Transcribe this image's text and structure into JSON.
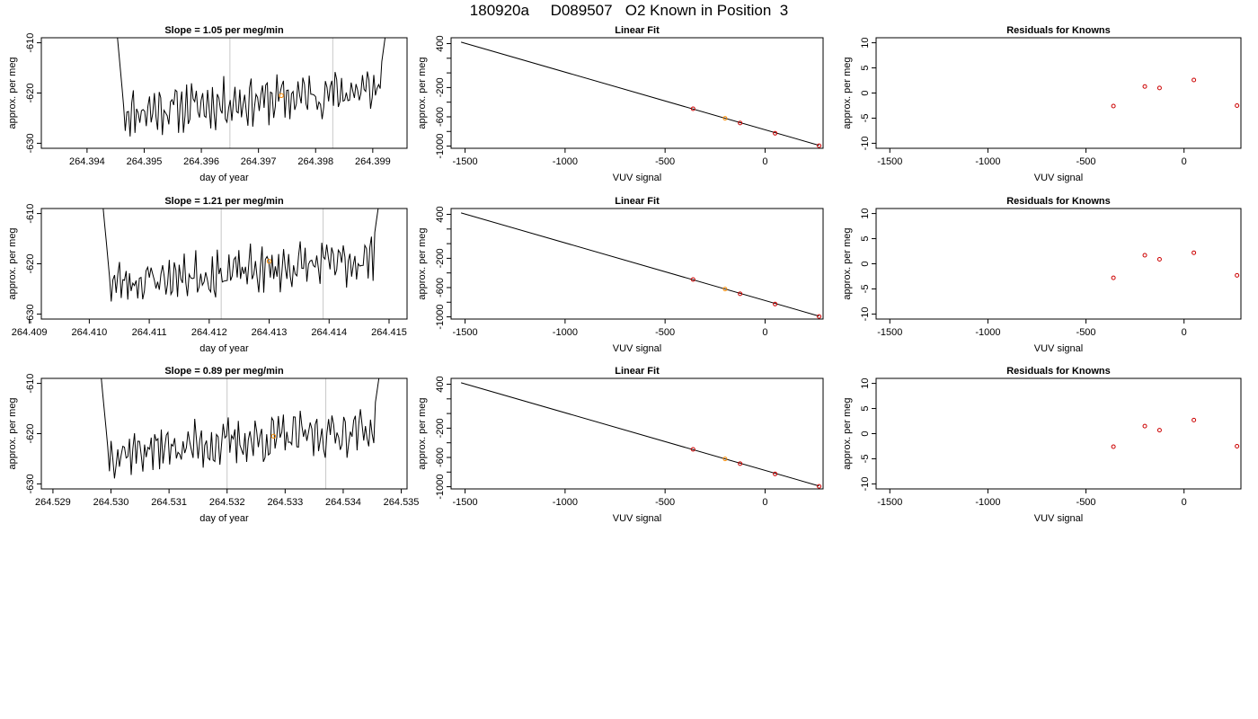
{
  "page": {
    "title": "180920a     D089507   O2 Known in Position  3"
  },
  "colors": {
    "trace": "#000000",
    "sample_marker": "#ff8c00",
    "known_point": "#cc0000",
    "vline": "#c8c8c8"
  },
  "chart_data": [
    {
      "type": "line",
      "title": "Slope =  1.05  per meg/min",
      "xlabel": "day of year",
      "ylabel": "approx. per meg",
      "xlim": [
        264.3932,
        264.3996
      ],
      "ylim": [
        -631,
        -609
      ],
      "x_ticks": [
        "264.394",
        "264.395",
        "264.396",
        "264.397",
        "264.398",
        "264.399"
      ],
      "y_ticks": [
        "-630",
        "-620",
        "-610"
      ],
      "trace_range": [
        264.3945,
        264.3993
      ],
      "vlines": [
        264.3965,
        264.3983
      ],
      "marker": {
        "x": 264.3974,
        "y": -620.5
      },
      "seed": 11
    },
    {
      "type": "scatter",
      "title": "Linear Fit",
      "xlabel": "VUV signal",
      "ylabel": "approx. per meg",
      "xlim": [
        -1570,
        290
      ],
      "ylim": [
        -1030,
        480
      ],
      "x_ticks": [
        "-1500",
        "-1000",
        "-500",
        "0"
      ],
      "y_ticks": [
        "-1000",
        "-800",
        "-600",
        "-400",
        "-200",
        "0",
        "200",
        "400"
      ],
      "y_tick_labels": [
        "-1000",
        "",
        "-600",
        "",
        "-200",
        "",
        "",
        "400"
      ],
      "line": [
        [
          -1520,
          420
        ],
        [
          270,
          -990
        ]
      ],
      "points": [
        [
          -360,
          -490
        ],
        [
          -200,
          -620
        ],
        [
          -125,
          -685
        ],
        [
          50,
          -825
        ],
        [
          270,
          -995
        ]
      ],
      "highlight_index": 1
    },
    {
      "type": "scatter",
      "title": "Residuals for Knowns",
      "xlabel": "VUV signal",
      "ylabel": "approx. per meg",
      "xlim": [
        -1570,
        290
      ],
      "ylim": [
        -11,
        11
      ],
      "x_ticks": [
        "-1500",
        "-1000",
        "-500",
        "0"
      ],
      "y_ticks": [
        "-10",
        "-5",
        "0",
        "5",
        "10"
      ],
      "points": [
        [
          -360,
          -2.6
        ],
        [
          -200,
          1.3
        ],
        [
          -125,
          1.0
        ],
        [
          50,
          2.6
        ],
        [
          270,
          -2.5
        ]
      ]
    },
    {
      "type": "line",
      "title": "Slope =  1.21  per meg/min",
      "xlabel": "day of year",
      "ylabel": "approx. per meg",
      "xlim": [
        264.4092,
        264.4153
      ],
      "ylim": [
        -631,
        -609
      ],
      "x_ticks": [
        "264.409",
        "264.410",
        "264.411",
        "264.412",
        "264.413",
        "264.414",
        "264.415"
      ],
      "y_ticks": [
        "-630",
        "-620",
        "-610"
      ],
      "trace_range": [
        264.4102,
        264.4149
      ],
      "vlines": [
        264.4122,
        264.4139
      ],
      "marker": {
        "x": 264.413,
        "y": -619.5
      },
      "seed": 23
    },
    {
      "type": "scatter",
      "title": "Linear Fit",
      "xlabel": "VUV signal",
      "ylabel": "approx. per meg",
      "xlim": [
        -1570,
        290
      ],
      "ylim": [
        -1030,
        480
      ],
      "x_ticks": [
        "-1500",
        "-1000",
        "-500",
        "0"
      ],
      "y_ticks": [
        "-1000",
        "-800",
        "-600",
        "-400",
        "-200",
        "0",
        "200",
        "400"
      ],
      "y_tick_labels": [
        "-1000",
        "",
        "-600",
        "",
        "-200",
        "",
        "",
        "400"
      ],
      "line": [
        [
          -1520,
          420
        ],
        [
          270,
          -990
        ]
      ],
      "points": [
        [
          -360,
          -490
        ],
        [
          -200,
          -620
        ],
        [
          -125,
          -685
        ],
        [
          50,
          -825
        ],
        [
          270,
          -995
        ]
      ],
      "highlight_index": 1
    },
    {
      "type": "scatter",
      "title": "Residuals for Knowns",
      "xlabel": "VUV signal",
      "ylabel": "approx. per meg",
      "xlim": [
        -1570,
        290
      ],
      "ylim": [
        -11,
        11
      ],
      "x_ticks": [
        "-1500",
        "-1000",
        "-500",
        "0"
      ],
      "y_ticks": [
        "-10",
        "-5",
        "0",
        "5",
        "10"
      ],
      "points": [
        [
          -360,
          -2.8
        ],
        [
          -200,
          1.7
        ],
        [
          -125,
          0.9
        ],
        [
          50,
          2.2
        ],
        [
          270,
          -2.3
        ]
      ]
    },
    {
      "type": "line",
      "title": "Slope =  0.89  per meg/min",
      "xlabel": "day of year",
      "ylabel": "approx. per meg",
      "xlim": [
        264.5288,
        264.5351
      ],
      "ylim": [
        -631,
        -609
      ],
      "x_ticks": [
        "264.529",
        "264.530",
        "264.531",
        "264.532",
        "264.533",
        "264.534",
        "264.535"
      ],
      "y_ticks": [
        "-630",
        "-620",
        "-610"
      ],
      "trace_range": [
        264.5298,
        264.5347
      ],
      "vlines": [
        264.532,
        264.5337
      ],
      "marker": {
        "x": 264.5328,
        "y": -620.5
      },
      "seed": 37
    },
    {
      "type": "scatter",
      "title": "Linear Fit",
      "xlabel": "VUV signal",
      "ylabel": "approx. per meg",
      "xlim": [
        -1570,
        290
      ],
      "ylim": [
        -1030,
        480
      ],
      "x_ticks": [
        "-1500",
        "-1000",
        "-500",
        "0"
      ],
      "y_ticks": [
        "-1000",
        "-800",
        "-600",
        "-400",
        "-200",
        "0",
        "200",
        "400"
      ],
      "y_tick_labels": [
        "-1000",
        "",
        "-600",
        "",
        "-200",
        "",
        "",
        "400"
      ],
      "line": [
        [
          -1520,
          420
        ],
        [
          270,
          -990
        ]
      ],
      "points": [
        [
          -360,
          -490
        ],
        [
          -200,
          -620
        ],
        [
          -125,
          -685
        ],
        [
          50,
          -825
        ],
        [
          270,
          -995
        ]
      ],
      "highlight_index": 1
    },
    {
      "type": "scatter",
      "title": "Residuals for Knowns",
      "xlabel": "VUV signal",
      "ylabel": "approx. per meg",
      "xlim": [
        -1570,
        290
      ],
      "ylim": [
        -11,
        11
      ],
      "x_ticks": [
        "-1500",
        "-1000",
        "-500",
        "0"
      ],
      "y_ticks": [
        "-10",
        "-5",
        "0",
        "5",
        "10"
      ],
      "points": [
        [
          -360,
          -2.6
        ],
        [
          -200,
          1.5
        ],
        [
          -125,
          0.7
        ],
        [
          50,
          2.7
        ],
        [
          270,
          -2.5
        ]
      ]
    }
  ]
}
